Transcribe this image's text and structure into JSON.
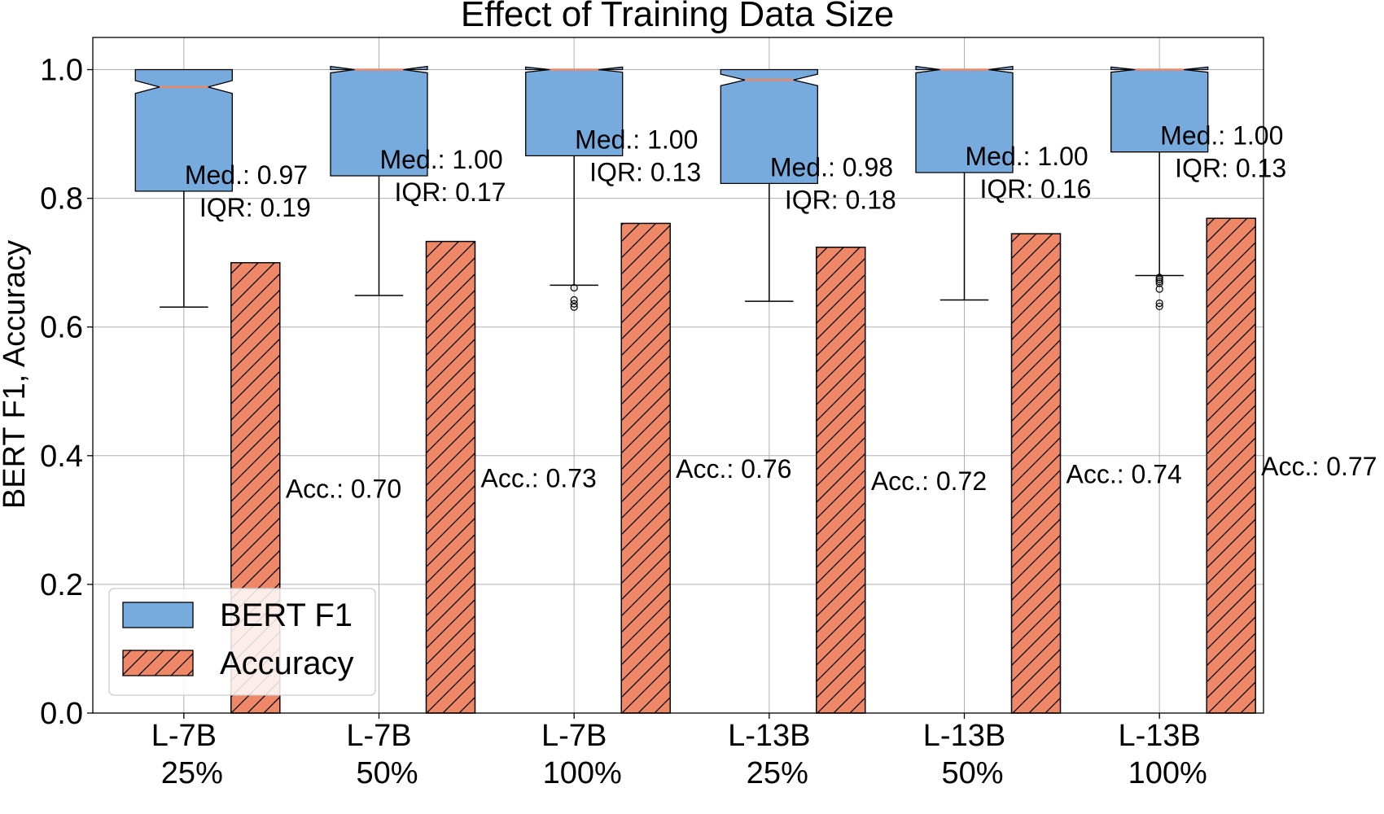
{
  "chart_data": {
    "type": "bar",
    "title": "Effect of Training Data Size",
    "xlabel": "",
    "ylabel": "BERT F1, Accuracy",
    "ylim": [
      0,
      1.05
    ],
    "yticks": [
      "0.0",
      "0.2",
      "0.4",
      "0.6",
      "0.8",
      "1.0"
    ],
    "ytick_values": [
      0,
      0.2,
      0.4,
      0.6,
      0.8,
      1.0
    ],
    "grid": true,
    "legend_position": "lower-left",
    "colors": {
      "box": "#77aadd",
      "bar": "#ee8866",
      "median": "#ee8866"
    },
    "categories": [
      {
        "line1": "L-7B",
        "line2": "25%"
      },
      {
        "line1": "L-7B",
        "line2": "50%"
      },
      {
        "line1": "L-7B",
        "line2": "100%"
      },
      {
        "line1": "L-13B",
        "line2": "25%"
      },
      {
        "line1": "L-13B",
        "line2": "50%"
      },
      {
        "line1": "L-13B",
        "line2": "100%"
      }
    ],
    "series": [
      {
        "name": "BERT F1",
        "kind": "box",
        "boxes": [
          {
            "q1": 0.811,
            "median": 0.973,
            "q3": 1.0,
            "whisker_low": 0.631,
            "whisker_high": 1.0,
            "notch_low": 0.963,
            "notch_high": 0.983,
            "fliers": [],
            "label_med": "Med.: 0.97",
            "label_iqr": "IQR: 0.19"
          },
          {
            "q1": 0.835,
            "median": 1.0,
            "q3": 1.0,
            "whisker_low": 0.649,
            "whisker_high": 1.0,
            "notch_low": 0.995,
            "notch_high": 1.005,
            "fliers": [],
            "label_med": "Med.: 1.00",
            "label_iqr": "IQR: 0.17"
          },
          {
            "q1": 0.866,
            "median": 1.0,
            "q3": 1.0,
            "whisker_low": 0.665,
            "whisker_high": 1.0,
            "notch_low": 0.996,
            "notch_high": 1.004,
            "fliers": [
              0.661,
              0.642,
              0.636,
              0.631
            ],
            "label_med": "Med.: 1.00",
            "label_iqr": "IQR: 0.13"
          },
          {
            "q1": 0.823,
            "median": 0.984,
            "q3": 1.0,
            "whisker_low": 0.64,
            "whisker_high": 1.0,
            "notch_low": 0.975,
            "notch_high": 0.993,
            "fliers": [],
            "label_med": "Med.: 0.98",
            "label_iqr": "IQR: 0.18"
          },
          {
            "q1": 0.84,
            "median": 1.0,
            "q3": 1.0,
            "whisker_low": 0.642,
            "whisker_high": 1.0,
            "notch_low": 0.995,
            "notch_high": 1.005,
            "fliers": [],
            "label_med": "Med.: 1.00",
            "label_iqr": "IQR: 0.16"
          },
          {
            "q1": 0.872,
            "median": 1.0,
            "q3": 1.0,
            "whisker_low": 0.68,
            "whisker_high": 1.0,
            "notch_low": 0.996,
            "notch_high": 1.004,
            "fliers": [
              0.677,
              0.674,
              0.671,
              0.668,
              0.659,
              0.637,
              0.632
            ],
            "label_med": "Med.: 1.00",
            "label_iqr": "IQR: 0.13"
          }
        ]
      },
      {
        "name": "Accuracy",
        "kind": "bar",
        "values": [
          0.7,
          0.733,
          0.761,
          0.724,
          0.745,
          0.769
        ],
        "labels": [
          "Acc.: 0.70",
          "Acc.: 0.73",
          "Acc.: 0.76",
          "Acc.: 0.72",
          "Acc.: 0.74",
          "Acc.: 0.77"
        ]
      }
    ]
  }
}
